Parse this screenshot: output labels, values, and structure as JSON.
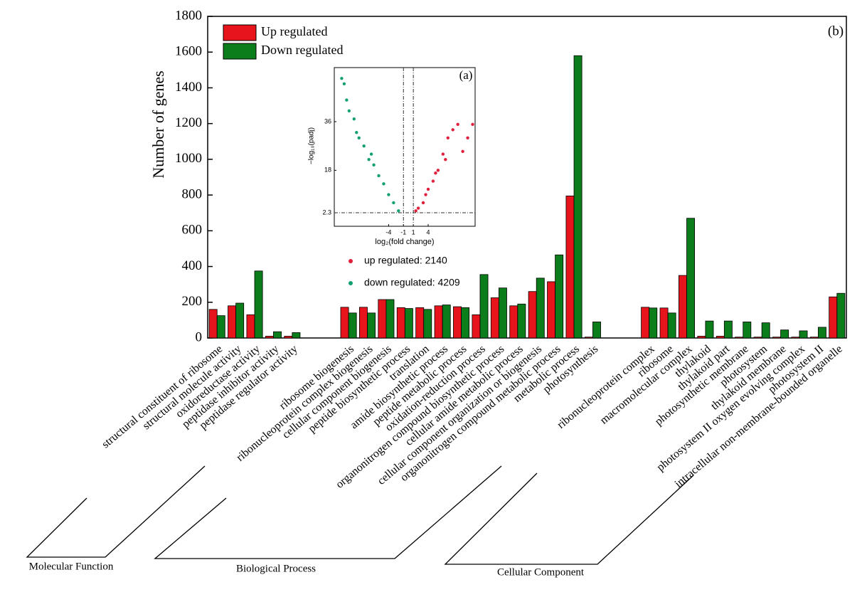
{
  "chart_data": [
    {
      "type": "bar",
      "ylabel": "Number of genes",
      "annotation": "(b)",
      "legend": "top-left",
      "categories": [
        "structural constituent of ribosome",
        "structural molecule activity",
        "oxidoreductase activity",
        "peptidase inhibitor activity",
        "peptidase regulator activity",
        null,
        null,
        "ribosome biogenesis",
        "ribonucleoprotein complex biogenesis",
        "cellular component biogenesis",
        "peptide biosynthetic process",
        "translation",
        "amide biosynthetic process",
        "peptide metabolic process",
        "oxidation-reduction process",
        "organonitrogen compound biosynthetic process",
        "cellular amide metabolic process",
        "cellular component organization or biogenesis",
        "organonitrogen compound metabolic process",
        "metabolic process",
        "photosynthesis",
        null,
        null,
        "ribonucleoprotein complex",
        "ribosome",
        "macromolecular complex",
        "thylakoid",
        "thylakoid part",
        "photosynthetic membrane",
        "photosystem",
        "thylakoid membrane",
        "photosystem II oxygen evolving complex",
        "photosystem II",
        "intracellular non-membrane-bounded organelle"
      ],
      "series": [
        {
          "name": "Up regulated",
          "color": "#e8141c",
          "values": [
            160,
            180,
            130,
            10,
            10,
            null,
            null,
            172,
            172,
            215,
            170,
            170,
            180,
            175,
            130,
            225,
            180,
            260,
            315,
            795,
            5,
            null,
            null,
            172,
            168,
            350,
            10,
            10,
            5,
            5,
            5,
            5,
            5,
            230
          ]
        },
        {
          "name": "Down regulated",
          "color": "#0b7d1a",
          "values": [
            125,
            195,
            375,
            35,
            30,
            null,
            null,
            140,
            140,
            215,
            165,
            160,
            185,
            170,
            355,
            280,
            190,
            335,
            465,
            1580,
            90,
            null,
            null,
            168,
            140,
            670,
            95,
            95,
            90,
            85,
            45,
            40,
            60,
            250
          ]
        }
      ],
      "ylim": [
        0,
        1800
      ],
      "yticks": [
        0,
        200,
        400,
        600,
        800,
        1000,
        1200,
        1400,
        1600,
        1800
      ],
      "group_labels": [
        "Molecular Function",
        "Biological Process",
        "Cellular Component"
      ]
    },
    {
      "type": "scatter",
      "annotation": "(a)",
      "xlabel": "log₂(fold change)",
      "ylabel": "−log₁₀(padj)",
      "xlim": [
        -15,
        13.5
      ],
      "ylim": [
        -2.7,
        56
      ],
      "xticks": [
        -4,
        -1,
        1,
        4
      ],
      "yticks": [
        2.3,
        18,
        36
      ],
      "series": [
        {
          "name": "up regulated: 2140",
          "color": "#e0203c",
          "x": [
            1.5,
            2,
            3,
            3.5,
            4,
            5,
            5.5,
            6,
            7,
            7.5,
            8,
            9,
            10,
            11,
            12,
            13
          ],
          "y": [
            3,
            4,
            6,
            9,
            11,
            14,
            17,
            18,
            24,
            22,
            30,
            33,
            35,
            25,
            30,
            35
          ]
        },
        {
          "name": "down regulated: 4209",
          "color": "#12a070",
          "x": [
            -13.5,
            -13,
            -12.5,
            -12,
            -11,
            -10.5,
            -10,
            -9,
            -8,
            -7.5,
            -7,
            -6,
            -5,
            -4,
            -3,
            -2
          ],
          "y": [
            52,
            50,
            44,
            40,
            37,
            32,
            30,
            27,
            22,
            24,
            20,
            16,
            13,
            9,
            6,
            3
          ]
        }
      ]
    }
  ]
}
